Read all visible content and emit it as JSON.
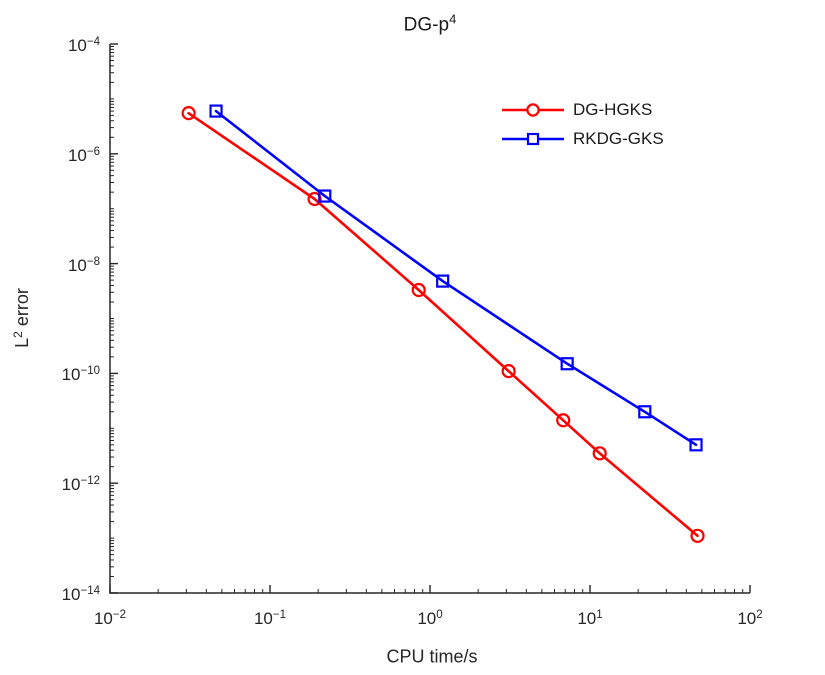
{
  "title": {
    "base": "DG-p",
    "sup": "4"
  },
  "axes": {
    "x": {
      "label": "CPU time/s",
      "tick_exponents": [
        -2,
        -1,
        0,
        1,
        2
      ]
    },
    "y": {
      "label_base": "L",
      "label_sup": "2",
      "label_rest": "error",
      "tick_exponents": [
        -4,
        -6,
        -8,
        -10,
        -12,
        -14
      ]
    }
  },
  "legend": [
    {
      "label": "DG-HGKS",
      "color": "#ff0000",
      "marker": "circle"
    },
    {
      "label": "RKDG-GKS",
      "color": "#0000ff",
      "marker": "square"
    }
  ],
  "colors": {
    "axis": "#262626",
    "text": "#262626",
    "title": "#1a1a1a",
    "background": "#ffffff"
  },
  "chart_data": {
    "type": "line",
    "title": "DG-p^4",
    "xlabel": "CPU time/s",
    "ylabel": "L^2 error",
    "x_scale": "log",
    "y_scale": "log",
    "xlim": [
      0.01,
      100
    ],
    "ylim": [
      1e-14,
      0.0001
    ],
    "grid": false,
    "legend_position": "upper right inside, no frame",
    "series": [
      {
        "name": "DG-HGKS",
        "color": "#ff0000",
        "marker": "circle",
        "x": [
          0.031,
          0.19,
          0.85,
          3.1,
          6.8,
          11.5,
          47
        ],
        "y": [
          5.5e-06,
          1.5e-07,
          3.3e-09,
          1.1e-10,
          1.4e-11,
          3.5e-12,
          1.1e-13
        ]
      },
      {
        "name": "RKDG-GKS",
        "color": "#0000ff",
        "marker": "square",
        "x": [
          0.046,
          0.22,
          1.2,
          7.2,
          22,
          46
        ],
        "y": [
          6e-06,
          1.7e-07,
          4.8e-09,
          1.5e-10,
          2e-11,
          5e-12
        ]
      }
    ]
  }
}
